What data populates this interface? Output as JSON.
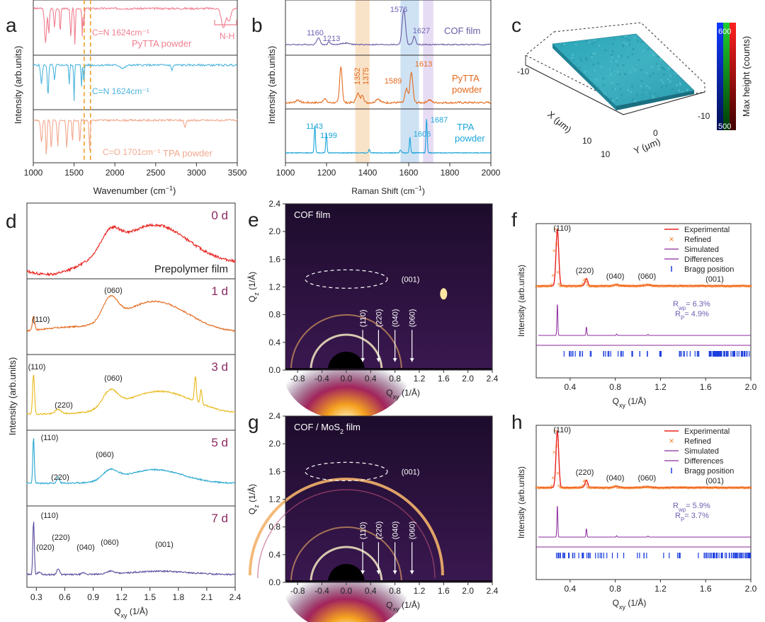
{
  "figure": {
    "panel_letters": {
      "a": "a",
      "b": "b",
      "c": "c",
      "d": "d",
      "e": "e",
      "f": "f",
      "g": "g",
      "h": "h"
    },
    "colors": {
      "pink": "#f07e8f",
      "blue": "#4db4de",
      "salmon": "#f2a88e",
      "dashed": "#ed9f2c",
      "purple": "#6a5aa3",
      "orange": "#e46a1e",
      "cyan": "#1aa5da",
      "red": "#e8231f",
      "yellow": "#e8b81a",
      "sky": "#25a7cf",
      "violet": "#5c4a9c",
      "fitOrange": "#f47a20",
      "sim": "#8b2a9c",
      "bragg": "#1d3fde",
      "annot": "#6d5fb2"
    }
  },
  "chart_data": [
    {
      "panel": "a",
      "type": "line",
      "xlabel": "Wavenumber (cm",
      "xlabel_sup": "−1",
      "xlabel_end": ")",
      "ylabel": "Intensity (arb.units)",
      "xlim": [
        1000,
        3500
      ],
      "xticks": [
        1000,
        1500,
        2000,
        2500,
        3000,
        3500
      ],
      "vlines": [
        1624,
        1701
      ],
      "series": [
        {
          "name": "PyTTA powder",
          "annotations": [
            "C=N 1624cm⁻¹",
            "N-H"
          ]
        },
        {
          "name": "C=N",
          "annotations": [
            "C=N 1624cm⁻¹"
          ]
        },
        {
          "name": "TPA powder",
          "annotations": [
            "C=O 1701cm⁻¹"
          ]
        }
      ]
    },
    {
      "panel": "b",
      "type": "line",
      "xlabel": "Raman Shift (cm",
      "xlabel_sup": "−1",
      "xlabel_end": ")",
      "ylabel": "Intensity (arb.units)",
      "xlim": [
        1000,
        2000
      ],
      "xticks": [
        1000,
        1200,
        1400,
        1600,
        1800,
        2000
      ],
      "bands": [
        [
          1340,
          1410
        ],
        [
          1560,
          1650
        ],
        [
          1670,
          1720
        ]
      ],
      "series": [
        {
          "name": "COF film",
          "peaks": [
            1160,
            1213,
            1576,
            1627
          ]
        },
        {
          "name": "PyTTA",
          "name2": "powder",
          "peaks": [
            1352,
            1375,
            1589,
            1613
          ]
        },
        {
          "name": "TPA",
          "name2": "powder",
          "peaks": [
            1143,
            1199,
            1606,
            1687
          ]
        }
      ]
    },
    {
      "panel": "c",
      "type": "heatmap",
      "xlabel": "X (μm)",
      "ylabel": "Y (μm)",
      "x_ticks": [
        "-10",
        "0",
        "10"
      ],
      "y_ticks": [
        "-10",
        "0",
        "10"
      ],
      "colorbar": {
        "label": "Max height (counts)",
        "max": "600",
        "min": "500"
      }
    },
    {
      "panel": "d",
      "type": "line",
      "xlabel": "Q",
      "xlabel_sub": "xy",
      "xlabel_end": " (1/Å)",
      "ylabel": "Intensity (arb.units)",
      "xlim": [
        0.2,
        2.4
      ],
      "xticks": [
        "0.3",
        "0.6",
        "0.9",
        "1.2",
        "1.5",
        "1.8",
        "2.1",
        "2.4"
      ],
      "series": [
        {
          "name": "0 d",
          "extra": "Prepolymer film",
          "labels": []
        },
        {
          "name": "1 d",
          "labels": [
            {
              "t": "(110)",
              "x": 0.27
            },
            {
              "t": "(060)",
              "x": 1.08
            }
          ]
        },
        {
          "name": "3 d",
          "labels": [
            {
              "t": "(110)",
              "x": 0.27
            },
            {
              "t": "(220)",
              "x": 0.53
            },
            {
              "t": "(060)",
              "x": 1.08
            }
          ]
        },
        {
          "name": "5 d",
          "labels": [
            {
              "t": "(110)",
              "x": 0.27
            },
            {
              "t": "(220)",
              "x": 0.53
            },
            {
              "t": "(060)",
              "x": 1.08
            }
          ]
        },
        {
          "name": "7 d",
          "labels": [
            {
              "t": "(110)",
              "x": 0.27
            },
            {
              "t": "(020)",
              "x": 0.33
            },
            {
              "t": "(220)",
              "x": 0.53
            },
            {
              "t": "(040)",
              "x": 0.8
            },
            {
              "t": "(060)",
              "x": 1.08
            },
            {
              "t": "(001)",
              "x": 1.68
            }
          ]
        }
      ]
    },
    {
      "panel": "e",
      "type": "heatmap",
      "title": "COF  film",
      "xlabel": "Q",
      "xlabel_sub": "xy",
      "xlabel_end": " (1/Å)",
      "ylabel": "Q",
      "ylabel_sub": "z",
      "ylabel_end": " (1/Å)",
      "xlim": [
        -1.0,
        2.4
      ],
      "ylim": [
        0,
        2.4
      ],
      "xticks": [
        "-0.8",
        "-0.4",
        "0.0",
        "0.4",
        "0.8",
        "1.2",
        "1.6",
        "2.0",
        "2.4"
      ],
      "yticks": [
        "0.0",
        "0.4",
        "0.8",
        "1.2",
        "1.6",
        "2.0",
        "2.4"
      ],
      "arrows": [
        "(110)",
        "(220)",
        "(040)",
        "(060)"
      ],
      "arrow_x": [
        0.27,
        0.53,
        0.8,
        1.08
      ],
      "ring_label": "(001)"
    },
    {
      "panel": "f",
      "type": "line",
      "xlabel": "Q",
      "xlabel_sub": "xy",
      "xlabel_end": " (1/Å)",
      "ylabel": "Intensity (arb.units)",
      "xlim": [
        0.1,
        2.0
      ],
      "xticks": [
        "0.4",
        "0.8",
        "1.2",
        "1.6",
        "2.0"
      ],
      "legend": [
        "Experimental",
        "Refined",
        "Simulated",
        "Differences",
        "Bragg position"
      ],
      "peaks": [
        {
          "t": "(110)",
          "x": 0.27
        },
        {
          "t": "(220)",
          "x": 0.53
        },
        {
          "t": "(040)",
          "x": 0.8
        },
        {
          "t": "(060)",
          "x": 1.08
        },
        {
          "t": "(001)",
          "x": 1.68
        }
      ],
      "rwp": "R",
      "rwp_sub": "wp",
      "rwp_val": "= 6.3%",
      "rp": "R",
      "rp_sub": "P",
      "rp_val": "= 4.9%"
    },
    {
      "panel": "g",
      "type": "heatmap",
      "title": "COF / MoS",
      "title_sub": "2",
      "title_end": " film",
      "xlabel": "Q",
      "xlabel_sub": "xy",
      "xlabel_end": " (1/Å)",
      "ylabel": "Q",
      "ylabel_sub": "z",
      "ylabel_end": " (1/Å)",
      "xlim": [
        -1.0,
        2.4
      ],
      "ylim": [
        0,
        2.4
      ],
      "xticks": [
        "-0.8",
        "-0.4",
        "0.0",
        "0.4",
        "0.8",
        "1.2",
        "1.6",
        "2.0",
        "2.4"
      ],
      "yticks": [
        "0.0",
        "0.4",
        "0.8",
        "1.2",
        "1.6",
        "2.0",
        "2.4"
      ],
      "arrows": [
        "(110)",
        "(220)",
        "(040)",
        "(060)"
      ],
      "arrow_x": [
        0.27,
        0.53,
        0.8,
        1.08
      ],
      "ring_label": "(001)"
    },
    {
      "panel": "h",
      "type": "line",
      "xlabel": "Q",
      "xlabel_sub": "xy",
      "xlabel_end": " (1/Å)",
      "ylabel": "Intensity (arb.units)",
      "xlim": [
        0.1,
        2.0
      ],
      "xticks": [
        "0.4",
        "0.8",
        "1.2",
        "1.6",
        "2.0"
      ],
      "legend": [
        "Experimental",
        "Refined",
        "Simulated",
        "Differences",
        "Bragg position"
      ],
      "peaks": [
        {
          "t": "(110)",
          "x": 0.27
        },
        {
          "t": "(220)",
          "x": 0.53
        },
        {
          "t": "(040)",
          "x": 0.8
        },
        {
          "t": "(060)",
          "x": 1.08
        },
        {
          "t": "(001)",
          "x": 1.68
        }
      ],
      "rwp": "R",
      "rwp_sub": "wp",
      "rwp_val": "= 5.9%",
      "rp": "R",
      "rp_sub": "P",
      "rp_val": "= 3.7%"
    }
  ]
}
